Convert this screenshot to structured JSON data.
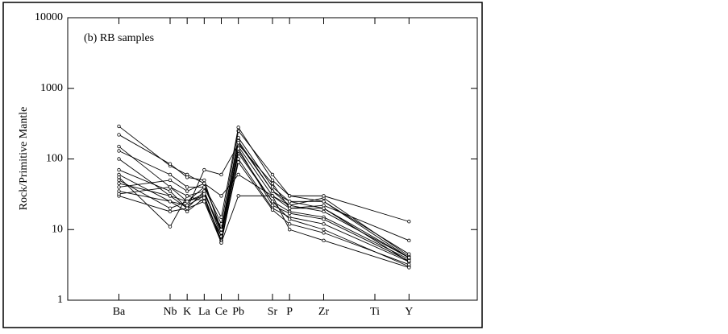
{
  "chart_data": {
    "type": "line",
    "annotation": "(b) RB samples",
    "y_label": "Rock/Primitive Mantle",
    "log_y": true,
    "color": "#000000",
    "x": [
      3,
      6,
      7,
      8,
      9,
      10,
      12,
      13,
      15,
      20
    ],
    "xlim": [
      0,
      24
    ],
    "xticks": [
      {
        "value": 3,
        "label": "Ba"
      },
      {
        "value": 6,
        "label": "Nb"
      },
      {
        "value": 7,
        "label": "K"
      },
      {
        "value": 8,
        "label": "La"
      },
      {
        "value": 9,
        "label": "Ce"
      },
      {
        "value": 10,
        "label": "Pb"
      },
      {
        "value": 12,
        "label": "Sr"
      },
      {
        "value": 13,
        "label": "P"
      },
      {
        "value": 15,
        "label": "Zr"
      },
      {
        "value": 18,
        "label": "Ti"
      },
      {
        "value": 20,
        "label": "Y"
      }
    ],
    "ylim": [
      1,
      10000
    ],
    "yticks": [
      1,
      10,
      100,
      1000,
      10000
    ],
    "series": [
      {
        "values": [
          290,
          80,
          60,
          45,
          10,
          200,
          40,
          25,
          25,
          4
        ]
      },
      {
        "values": [
          220,
          85,
          55,
          50,
          9,
          180,
          35,
          22,
          28,
          4.2
        ]
      },
      {
        "values": [
          150,
          40,
          30,
          35,
          8,
          150,
          30,
          20,
          20,
          3.5
        ]
      },
      {
        "values": [
          130,
          60,
          40,
          40,
          12,
          250,
          60,
          30,
          30,
          13
        ]
      },
      {
        "values": [
          100,
          30,
          25,
          30,
          7,
          120,
          25,
          18,
          15,
          3.8
        ]
      },
      {
        "values": [
          70,
          35,
          20,
          70,
          60,
          160,
          45,
          20,
          22,
          7
        ]
      },
      {
        "values": [
          60,
          25,
          22,
          30,
          6.5,
          100,
          20,
          15,
          12,
          3.5
        ]
      },
      {
        "values": [
          55,
          11,
          30,
          25,
          8,
          130,
          25,
          14,
          10,
          3
        ]
      },
      {
        "values": [
          50,
          20,
          25,
          40,
          15,
          280,
          50,
          30,
          25,
          4.5
        ]
      },
      {
        "values": [
          45,
          30,
          20,
          35,
          9,
          140,
          22,
          17,
          14,
          3.6
        ]
      },
      {
        "values": [
          40,
          50,
          35,
          45,
          30,
          60,
          30,
          22,
          18,
          4
        ]
      },
      {
        "values": [
          35,
          25,
          18,
          28,
          7,
          90,
          19,
          12,
          9,
          3.2
        ]
      },
      {
        "values": [
          30,
          18,
          20,
          25,
          6.5,
          30,
          30,
          10,
          7,
          2.9
        ]
      },
      {
        "values": [
          32,
          40,
          25,
          32,
          10,
          170,
          35,
          25,
          20,
          4
        ]
      }
    ]
  }
}
